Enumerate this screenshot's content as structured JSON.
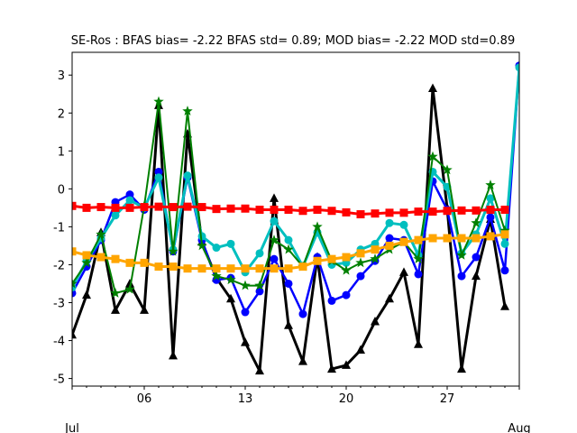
{
  "chart_data": {
    "type": "line",
    "title": "SE-Ros   : BFAS bias= -2.22 BFAS std= 0.89; MOD bias= -2.22 MOD std=0.89",
    "xlabel": "",
    "ylabel": "",
    "x": [
      "2025-07-01",
      "2025-07-02",
      "2025-07-03",
      "2025-07-04",
      "2025-07-05",
      "2025-07-06",
      "2025-07-07",
      "2025-07-08",
      "2025-07-09",
      "2025-07-10",
      "2025-07-11",
      "2025-07-12",
      "2025-07-13",
      "2025-07-14",
      "2025-07-15",
      "2025-07-16",
      "2025-07-17",
      "2025-07-18",
      "2025-07-19",
      "2025-07-20",
      "2025-07-21",
      "2025-07-22",
      "2025-07-23",
      "2025-07-24",
      "2025-07-25",
      "2025-07-26",
      "2025-07-27",
      "2025-07-28",
      "2025-07-29",
      "2025-07-30",
      "2025-07-31",
      "2025-08-01"
    ],
    "xlim": [
      "2025-07-01",
      "2025-08-01"
    ],
    "ylim": [
      -5.2,
      3.6
    ],
    "y_ticks": [
      -5,
      -4,
      -3,
      -2,
      -1,
      0,
      1,
      2,
      3
    ],
    "x_ticks": [
      {
        "date": "2025-07-06",
        "label": "06"
      },
      {
        "date": "2025-07-13",
        "label": "13"
      },
      {
        "date": "2025-07-20",
        "label": "20"
      },
      {
        "date": "2025-07-27",
        "label": "27"
      }
    ],
    "x_month_labels": [
      {
        "date": "2025-07-01",
        "label": "Jul"
      },
      {
        "date": "2025-08-01",
        "label": "Aug"
      }
    ],
    "grid": false,
    "series": [
      {
        "color": "#000000",
        "marker": "triangle",
        "linewidth": 3,
        "values": [
          -3.85,
          -2.8,
          -1.15,
          -3.2,
          -2.5,
          -3.2,
          2.2,
          -4.4,
          1.45,
          -1.4,
          -2.35,
          -2.9,
          -4.05,
          -4.8,
          -0.25,
          -3.6,
          -4.55,
          -1.8,
          -4.75,
          -4.65,
          -4.25,
          -3.5,
          -2.9,
          -2.2,
          -4.1,
          2.65,
          -0.5,
          -4.75,
          -2.3,
          -0.8,
          -3.1,
          null
        ]
      },
      {
        "color": "#0000ff",
        "marker": "circle",
        "linewidth": 2.5,
        "values": [
          -2.75,
          -2.05,
          -1.35,
          -0.35,
          -0.15,
          -0.55,
          0.45,
          -1.65,
          0.3,
          -1.35,
          -2.4,
          -2.35,
          -3.25,
          -2.7,
          -1.85,
          -2.5,
          -3.3,
          -1.8,
          -2.95,
          -2.8,
          -2.3,
          -1.9,
          -1.3,
          -1.35,
          -2.25,
          0.2,
          -0.55,
          -2.3,
          -1.8,
          -0.75,
          -2.15,
          3.25
        ]
      },
      {
        "color": "#00bfbf",
        "marker": "circle",
        "linewidth": 3,
        "values": [
          -2.6,
          -1.9,
          -1.3,
          -0.7,
          -0.3,
          -0.5,
          0.3,
          -1.6,
          0.35,
          -1.25,
          -1.55,
          -1.45,
          -2.2,
          -1.7,
          -0.85,
          -1.35,
          -2.05,
          -1.15,
          -2.0,
          -1.95,
          -1.6,
          -1.45,
          -0.9,
          -0.95,
          -1.75,
          0.45,
          0.05,
          -1.7,
          -1.2,
          -0.25,
          -1.45,
          3.2
        ]
      },
      {
        "color": "#008000",
        "marker": "star",
        "linewidth": 2,
        "values": [
          -2.5,
          -1.95,
          -1.2,
          -2.75,
          -2.65,
          -0.45,
          2.3,
          -1.65,
          2.05,
          -1.5,
          -2.3,
          -2.4,
          -2.55,
          -2.55,
          -1.35,
          -1.6,
          -2.05,
          -1.0,
          -1.9,
          -2.15,
          -1.95,
          -1.85,
          -1.6,
          -1.4,
          -1.85,
          0.85,
          0.5,
          -1.75,
          -0.9,
          0.1,
          -1.1,
          null
        ]
      },
      {
        "color": "#ff0000",
        "marker": "square",
        "linewidth": 3,
        "values": [
          -0.45,
          -0.5,
          -0.48,
          -0.5,
          -0.5,
          -0.48,
          -0.47,
          -0.48,
          -0.47,
          -0.48,
          -0.53,
          -0.52,
          -0.52,
          -0.55,
          -0.55,
          -0.55,
          -0.58,
          -0.55,
          -0.58,
          -0.62,
          -0.67,
          -0.65,
          -0.63,
          -0.63,
          -0.6,
          -0.6,
          -0.58,
          -0.57,
          -0.57,
          -0.55,
          -0.55,
          null
        ]
      },
      {
        "color": "#ffa500",
        "marker": "square",
        "linewidth": 3,
        "values": [
          -1.65,
          -1.75,
          -1.8,
          -1.85,
          -1.95,
          -1.95,
          -2.05,
          -2.05,
          -2.1,
          -2.1,
          -2.1,
          -2.1,
          -2.1,
          -2.1,
          -2.1,
          -2.1,
          -2.05,
          -1.9,
          -1.85,
          -1.8,
          -1.7,
          -1.6,
          -1.5,
          -1.4,
          -1.35,
          -1.3,
          -1.3,
          -1.3,
          -1.3,
          -1.25,
          -1.2,
          null
        ]
      }
    ]
  }
}
